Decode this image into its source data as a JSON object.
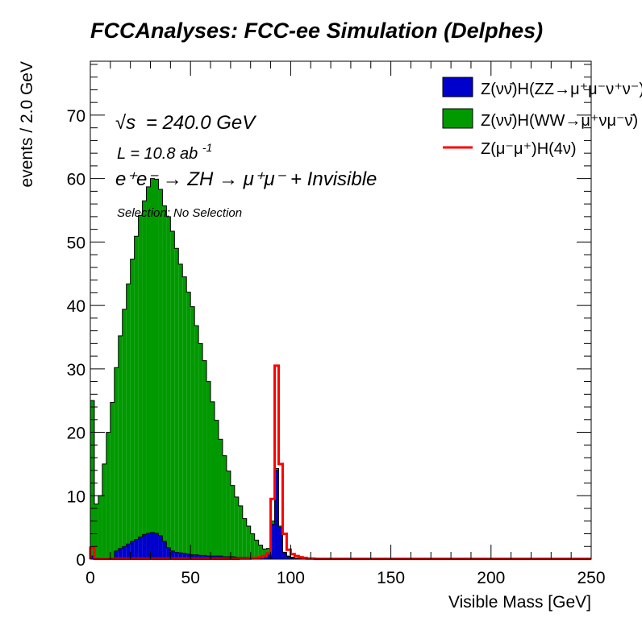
{
  "header": {
    "title": "FCCAnalyses: FCC-ee Simulation (Delphes)"
  },
  "annotations": {
    "sqrt_s_symbol": "√s",
    "sqrt_s_value": "= 240.0 GeV",
    "lumi_base": "L = 10.8 ab",
    "lumi_exp": "-1",
    "process": "e⁺e⁻ → ZH → μ⁺μ⁻ + Invisible",
    "selection": "Selection: No Selection"
  },
  "colors": {
    "zz": "#0000cc",
    "ww": "#009900",
    "signal": "#ff0000",
    "outline": "#000000"
  },
  "chart_data": {
    "type": "bar",
    "subtype": "stacked-histogram",
    "xlabel": "Visible Mass [GeV]",
    "ylabel": "events / 2.0 GeV",
    "xlim": [
      0,
      250
    ],
    "ylim": [
      0,
      78.5
    ],
    "bin_width": 2.0,
    "x_ticks": [
      0,
      50,
      100,
      150,
      200,
      250
    ],
    "x_tick_labels": [
      "0",
      "50",
      "100",
      "150",
      "200",
      "250"
    ],
    "y_ticks": [
      0,
      10,
      20,
      30,
      40,
      50,
      60,
      70
    ],
    "y_tick_labels": [
      "0",
      "10",
      "20",
      "30",
      "40",
      "50",
      "60",
      "70"
    ],
    "legend_position": "top-right",
    "bin_edges_start": 0,
    "series": [
      {
        "name": "Z(νν̄)H(ZZ→μ⁺μ⁻ν⁺ν⁻)",
        "style": "filled",
        "color": "#0000cc",
        "values": [
          0.5,
          0.2,
          0.1,
          0.1,
          0.1,
          0.2,
          1.3,
          1.7,
          2.0,
          2.4,
          2.8,
          3.1,
          3.5,
          3.9,
          4.1,
          4.2,
          4.1,
          3.7,
          2.8,
          1.8,
          1.3,
          1.1,
          1.0,
          0.9,
          0.8,
          0.7,
          0.7,
          0.6,
          0.6,
          0.5,
          0.5,
          0.5,
          0.5,
          0.4,
          0.4,
          0.4,
          0.3,
          0.3,
          0.3,
          0.3,
          0.3,
          0.3,
          0.3,
          0.4,
          0.9,
          5.5,
          14.0,
          5.0,
          1.0,
          0.4,
          0.2,
          0.1,
          0.1,
          0.1,
          0.05,
          0.05,
          0.05,
          0.05,
          0.05,
          0.05,
          0.05,
          0,
          0,
          0,
          0,
          0,
          0,
          0,
          0,
          0,
          0,
          0,
          0,
          0,
          0,
          0,
          0,
          0,
          0,
          0,
          0,
          0,
          0,
          0,
          0,
          0,
          0,
          0,
          0,
          0,
          0,
          0,
          0,
          0,
          0,
          0,
          0,
          0,
          0,
          0,
          0,
          0,
          0,
          0,
          0,
          0,
          0,
          0,
          0,
          0,
          0,
          0,
          0,
          0,
          0,
          0,
          0,
          0,
          0,
          0,
          0,
          0,
          0,
          0,
          0
        ]
      },
      {
        "name": "Z(νν̄)H(WW→μ⁺νμ⁻ν̄)",
        "style": "filled",
        "color": "#009900",
        "values": [
          24.5,
          8.5,
          9.9,
          14.9,
          19.9,
          24.5,
          28.9,
          33.5,
          37.4,
          41.0,
          44.5,
          47.8,
          50.7,
          52.6,
          54.6,
          55.8,
          55.8,
          54.6,
          52.9,
          52.2,
          50.4,
          47.9,
          45.5,
          43.6,
          41.3,
          39.1,
          36.1,
          33.4,
          30.7,
          27.5,
          24.3,
          21.4,
          18.4,
          15.9,
          13.5,
          11.2,
          9.5,
          8.1,
          6.1,
          4.9,
          3.7,
          2.7,
          1.9,
          1.2,
          0.8,
          0.5,
          0.3,
          0.2,
          0.1,
          0.1,
          0.1,
          0.05,
          0.05,
          0,
          0,
          0,
          0,
          0,
          0,
          0,
          0,
          0,
          0,
          0,
          0,
          0,
          0,
          0,
          0,
          0,
          0,
          0,
          0,
          0,
          0,
          0,
          0,
          0,
          0,
          0,
          0,
          0,
          0,
          0,
          0,
          0,
          0,
          0,
          0,
          0,
          0,
          0,
          0,
          0,
          0,
          0,
          0,
          0,
          0,
          0,
          0,
          0,
          0,
          0,
          0,
          0,
          0,
          0,
          0,
          0,
          0,
          0,
          0,
          0,
          0,
          0,
          0,
          0,
          0,
          0,
          0,
          0,
          0,
          0,
          0
        ]
      },
      {
        "name": "Z(μ⁻μ⁺)H(4ν)",
        "style": "line",
        "color": "#ff0000",
        "values": [
          1.8,
          0.05,
          0.05,
          0.05,
          0.05,
          0.05,
          0.05,
          0.05,
          0.05,
          0.05,
          0.05,
          0.05,
          0.05,
          0.05,
          0.05,
          0.05,
          0.05,
          0.05,
          0.05,
          0.05,
          0.05,
          0.05,
          0.05,
          0.05,
          0.05,
          0.05,
          0.05,
          0.05,
          0.05,
          0.05,
          0.05,
          0.05,
          0.05,
          0.05,
          0.05,
          0.05,
          0.05,
          0.1,
          0.1,
          0.1,
          0.2,
          0.2,
          0.3,
          0.5,
          0.9,
          9.5,
          30.5,
          15.0,
          4.0,
          1.5,
          0.8,
          0.5,
          0.3,
          0.2,
          0.1,
          0.1,
          0.05,
          0.05,
          0.05,
          0.05,
          0.05,
          0.05,
          0.05,
          0.05,
          0.05,
          0.05,
          0.05,
          0.05,
          0.05,
          0.05,
          0.05,
          0.05,
          0.05,
          0.05,
          0.05,
          0.05,
          0.05,
          0.05,
          0.05,
          0.05,
          0.05,
          0.05,
          0.05,
          0.05,
          0.05,
          0.05,
          0.05,
          0.05,
          0.05,
          0.05,
          0.05,
          0.05,
          0.05,
          0.05,
          0.05,
          0.05,
          0.05,
          0.05,
          0.05,
          0.05,
          0.05,
          0.05,
          0.05,
          0.05,
          0.05,
          0.05,
          0.05,
          0.05,
          0.05,
          0.05,
          0.05,
          0.05,
          0.05,
          0.05,
          0.05,
          0.05,
          0.05,
          0.05,
          0.05,
          0.05,
          0.05,
          0.05,
          0.05,
          0.05,
          0.05
        ]
      }
    ]
  }
}
